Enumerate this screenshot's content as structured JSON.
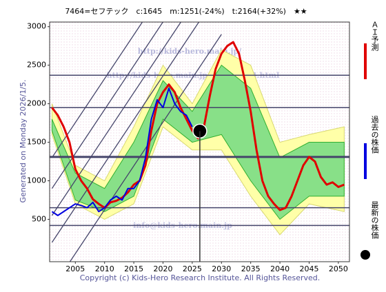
{
  "chart_data": {
    "type": "line",
    "title": "7464=セフテック　c:1645　m:1251(-24%)　t:2164(+32%)　★★",
    "side_note": "Generated on Monday 2026/1/5.",
    "footer": "Copyright (c) Kids-Hero Research Institute. All Rights Reserved.",
    "watermarks": [
      "http://kids-hero.main.jp/",
      "http://kids-hero.main.jp/stock/7464.html",
      "KHRI",
      "info@kids-hero.main.jp"
    ],
    "xlim": [
      2000.6,
      2051.9
    ],
    "ylim": [
      -50,
      3060
    ],
    "xticks": [
      2005,
      2010,
      2015,
      2020,
      2025,
      2030,
      2035,
      2040,
      2045,
      2050
    ],
    "yticks": [
      500,
      1000,
      1500,
      2000,
      2500,
      3000
    ],
    "hlines": [
      2370,
      1950,
      1310,
      650,
      420
    ],
    "vline": 2026.3,
    "trendlines": [
      [
        [
          2001,
          -400
        ],
        [
          2030,
          2900
        ]
      ],
      [
        [
          2001,
          200
        ],
        [
          2030,
          3500
        ]
      ],
      [
        [
          2001,
          550
        ],
        [
          2030,
          3850
        ]
      ],
      [
        [
          2001,
          900
        ],
        [
          2030,
          4200
        ]
      ],
      [
        [
          2001,
          1300
        ],
        [
          2030,
          4600
        ]
      ]
    ],
    "bands": {
      "x": [
        2001,
        2005,
        2010,
        2015,
        2020,
        2025,
        2030,
        2035,
        2040,
        2045,
        2051
      ],
      "yellow_upper": [
        2000,
        1200,
        1000,
        1700,
        2500,
        2000,
        2700,
        2500,
        1500,
        1600,
        1700
      ],
      "yellow_lower": [
        1600,
        700,
        500,
        700,
        1700,
        1400,
        1400,
        800,
        300,
        700,
        600
      ],
      "green_upper": [
        1800,
        1100,
        900,
        1500,
        2300,
        1900,
        2500,
        2200,
        1300,
        1500,
        1500
      ],
      "green_lower": [
        1650,
        750,
        600,
        800,
        1800,
        1500,
        1600,
        1000,
        500,
        800,
        800
      ]
    },
    "series": [
      {
        "name": "ＡＩ予測",
        "color": "#e00000",
        "x": [
          2001,
          2002,
          2003,
          2004,
          2005,
          2006,
          2007,
          2008,
          2009,
          2010,
          2011,
          2012,
          2013,
          2014,
          2015,
          2016,
          2017,
          2018,
          2019,
          2020,
          2021,
          2022,
          2023,
          2024,
          2025,
          2026,
          2027,
          2028,
          2029,
          2030,
          2031,
          2032,
          2033,
          2034,
          2035,
          2036,
          2037,
          2038,
          2039,
          2040,
          2041,
          2042,
          2043,
          2044,
          2045,
          2046,
          2047,
          2048,
          2049,
          2050,
          2051
        ],
        "values": [
          1950,
          1850,
          1700,
          1500,
          1150,
          1000,
          900,
          760,
          700,
          650,
          720,
          740,
          780,
          850,
          950,
          1000,
          1200,
          1650,
          2000,
          2150,
          2250,
          2150,
          1950,
          1800,
          1650,
          1550,
          1700,
          2100,
          2450,
          2650,
          2750,
          2800,
          2650,
          2300,
          1900,
          1400,
          1000,
          800,
          700,
          620,
          650,
          800,
          1000,
          1200,
          1310,
          1250,
          1050,
          950,
          980,
          920,
          950
        ]
      },
      {
        "name": "過去の株価",
        "color": "#0000e0",
        "x": [
          2001,
          2002,
          2003,
          2004,
          2005,
          2006,
          2007,
          2008,
          2009,
          2010,
          2011,
          2012,
          2013,
          2014,
          2015,
          2016,
          2017,
          2018,
          2019,
          2020,
          2021,
          2022,
          2023,
          2024,
          2025
        ],
        "values": [
          600,
          550,
          600,
          650,
          700,
          680,
          650,
          720,
          600,
          650,
          750,
          800,
          750,
          900,
          900,
          1000,
          1300,
          1800,
          2050,
          1950,
          2200,
          2000,
          1900,
          1850,
          1700
        ]
      },
      {
        "name": "最新の株価",
        "color": "#000000",
        "x": [
          2026.3
        ],
        "values": [
          1645
        ]
      }
    ]
  }
}
